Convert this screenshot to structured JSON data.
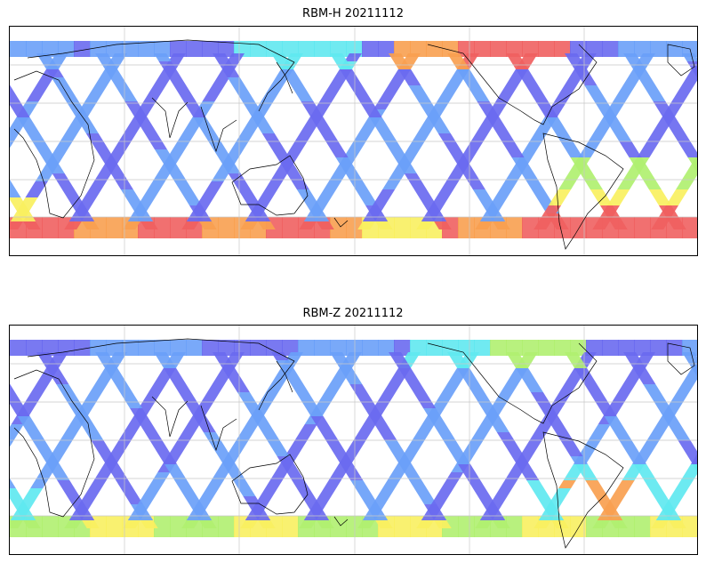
{
  "panels": [
    {
      "title": "RBM-H 20211112",
      "variant": "H"
    },
    {
      "title": "RBM-Z 20211112",
      "variant": "Z"
    }
  ],
  "palette": {
    "low": "#6a6af0",
    "low2": "#6aa0f8",
    "mid": "#60e8f0",
    "midhi": "#b0f070",
    "hi": "#f8f060",
    "hot": "#f8a050",
    "max": "#f06060",
    "land_outline": "#000000",
    "grid": "#c8c8c8"
  }
}
